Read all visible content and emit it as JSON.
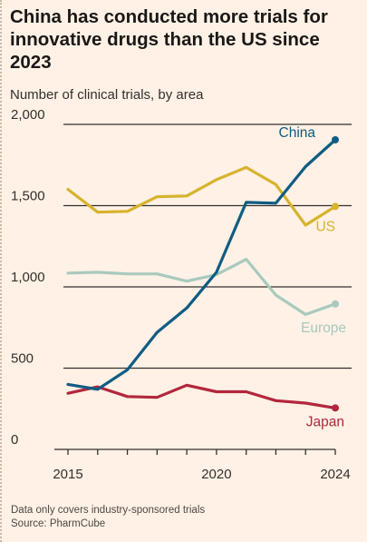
{
  "header": {
    "title": "China has conducted more trials for innovative drugs than the US since 2023",
    "subtitle": "Number of clinical trials, by area"
  },
  "footer": {
    "note": "Data only covers industry-sponsored trials",
    "source": "Source: PharmCube"
  },
  "chart_data": {
    "type": "line",
    "title": "China has conducted more trials for innovative drugs than the US since 2023",
    "subtitle": "Number of clinical trials, by area",
    "x": [
      2015,
      2016,
      2017,
      2018,
      2019,
      2020,
      2021,
      2022,
      2023,
      2024
    ],
    "x_tick_labels": [
      "2015",
      "2020",
      "2024"
    ],
    "y_ticks": [
      0,
      500,
      1000,
      1500,
      2000
    ],
    "y_tick_labels": [
      "0",
      "500",
      "1,000",
      "1,500",
      "2,000"
    ],
    "ylim": [
      0,
      2000
    ],
    "grid": true,
    "legend": "direct labels at line ends",
    "series": [
      {
        "name": "China",
        "color": "#0f5c82",
        "values": [
          400,
          370,
          490,
          720,
          870,
          1090,
          1520,
          1515,
          1740,
          1905
        ]
      },
      {
        "name": "US",
        "color": "#d7b32e",
        "values": [
          1600,
          1460,
          1465,
          1555,
          1560,
          1660,
          1735,
          1630,
          1380,
          1495
        ]
      },
      {
        "name": "Europe",
        "color": "#a9c9be",
        "values": [
          1085,
          1090,
          1080,
          1080,
          1035,
          1075,
          1170,
          950,
          830,
          895
        ]
      },
      {
        "name": "Japan",
        "color": "#b2273d",
        "values": [
          345,
          385,
          325,
          320,
          395,
          355,
          355,
          300,
          285,
          255
        ]
      }
    ]
  }
}
